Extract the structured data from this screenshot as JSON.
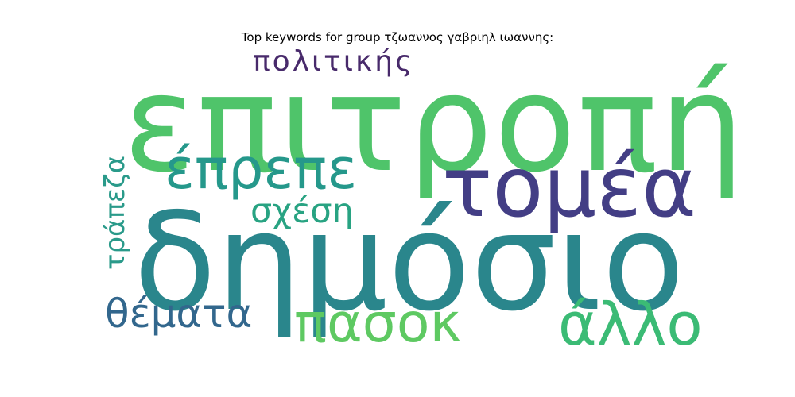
{
  "title": "Top keywords for group τζωαννος γαβριηλ ιωαννης:",
  "words": [
    {
      "text": "επιτροπή",
      "color": "#4fc46a"
    },
    {
      "text": "δημόσιο",
      "color": "#2a868c"
    },
    {
      "text": "τομέα",
      "color": "#433e85"
    },
    {
      "text": "έπρεπε",
      "color": "#25988b"
    },
    {
      "text": "πασοκ",
      "color": "#5ec962"
    },
    {
      "text": "άλλο",
      "color": "#3bbb75"
    },
    {
      "text": "σχέση",
      "color": "#28a382"
    },
    {
      "text": "θέματα",
      "color": "#32678d"
    },
    {
      "text": "πολιτικής",
      "color": "#482a6b"
    },
    {
      "text": "τράπεζα",
      "color": "#2a9a8a"
    }
  ]
}
